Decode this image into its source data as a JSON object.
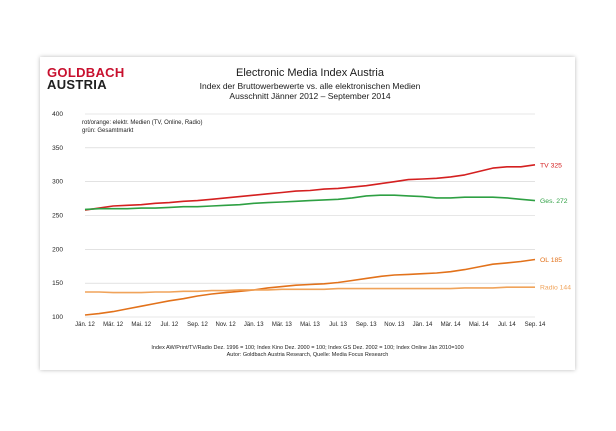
{
  "logo": {
    "line1": "GOLDBACH",
    "line2": "AUSTRIA"
  },
  "header": {
    "title": "Electronic Media Index Austria",
    "subtitle1": "Index der Bruttowerbewerte vs. alle elektronischen Medien",
    "subtitle2": "Ausschnitt Jänner 2012 –  September 2014"
  },
  "footer": {
    "line1": "Index AW/Print/TV/Radio Dez. 1996 = 100; Index Kino Dez. 2000 = 100; Index GS Dez. 2002 = 100; Index Online Jän 2010=100",
    "line2": "Autor: Goldbach Austria Research, Quelle: Media Focus Research"
  },
  "chart_data": {
    "type": "line",
    "annotations": [
      "rot/orange: elektr. Medien (TV, Online, Radio)",
      "grün: Gesamtmarkt"
    ],
    "ylim": [
      100,
      400
    ],
    "yticks": [
      100,
      150,
      200,
      250,
      300,
      350,
      400
    ],
    "grid": true,
    "categories": [
      "Jän. 12",
      "Feb. 12",
      "Mär. 12",
      "Apr. 12",
      "Mai. 12",
      "Jun. 12",
      "Jul. 12",
      "Aug. 12",
      "Sep. 12",
      "Okt. 12",
      "Nov. 12",
      "Dez. 12",
      "Jän. 13",
      "Feb. 13",
      "Mär. 13",
      "Apr. 13",
      "Mai. 13",
      "Jun. 13",
      "Jul. 13",
      "Aug. 13",
      "Sep. 13",
      "Okt. 13",
      "Nov. 13",
      "Dez. 13",
      "Jän. 14",
      "Feb. 14",
      "Mär. 14",
      "Apr. 14",
      "Mai. 14",
      "Jun. 14",
      "Jul. 14",
      "Aug. 14",
      "Sep. 14"
    ],
    "xtick_labels": [
      "Jän. 12",
      "Mär. 12",
      "Mai. 12",
      "Jul. 12",
      "Sep. 12",
      "Nov. 12",
      "Jän. 13",
      "Mär. 13",
      "Mai. 13",
      "Jul. 13",
      "Sep. 13",
      "Nov. 13",
      "Jän. 14",
      "Mär. 14",
      "Mai. 14",
      "Jul. 14",
      "Sep. 14"
    ],
    "series": [
      {
        "name": "TV",
        "end_label": "TV  325",
        "color": "#d42020",
        "values": [
          258,
          261,
          264,
          265,
          266,
          268,
          269,
          271,
          272,
          274,
          276,
          278,
          280,
          282,
          284,
          286,
          287,
          289,
          290,
          292,
          294,
          297,
          300,
          303,
          304,
          305,
          307,
          310,
          315,
          320,
          322,
          322,
          325
        ]
      },
      {
        "name": "Ges.",
        "end_label": "Ges. 272",
        "color": "#2ea043",
        "values": [
          259,
          260,
          260,
          260,
          261,
          261,
          262,
          263,
          263,
          264,
          265,
          266,
          268,
          269,
          270,
          271,
          272,
          273,
          274,
          276,
          279,
          280,
          280,
          279,
          278,
          276,
          276,
          277,
          277,
          277,
          276,
          274,
          272
        ]
      },
      {
        "name": "OL",
        "end_label": "OL 185",
        "color": "#e2721b",
        "values": [
          103,
          105,
          108,
          112,
          116,
          120,
          124,
          127,
          131,
          134,
          136,
          138,
          140,
          143,
          145,
          147,
          148,
          149,
          151,
          154,
          157,
          160,
          162,
          163,
          164,
          165,
          167,
          170,
          174,
          178,
          180,
          182,
          185
        ]
      },
      {
        "name": "Radio",
        "end_label": "Radio 144",
        "color": "#f0a35a",
        "values": [
          137,
          137,
          136,
          136,
          136,
          137,
          137,
          138,
          138,
          139,
          139,
          140,
          140,
          140,
          141,
          141,
          141,
          141,
          142,
          142,
          142,
          142,
          142,
          142,
          142,
          142,
          142,
          143,
          143,
          143,
          144,
          144,
          144
        ]
      }
    ]
  }
}
